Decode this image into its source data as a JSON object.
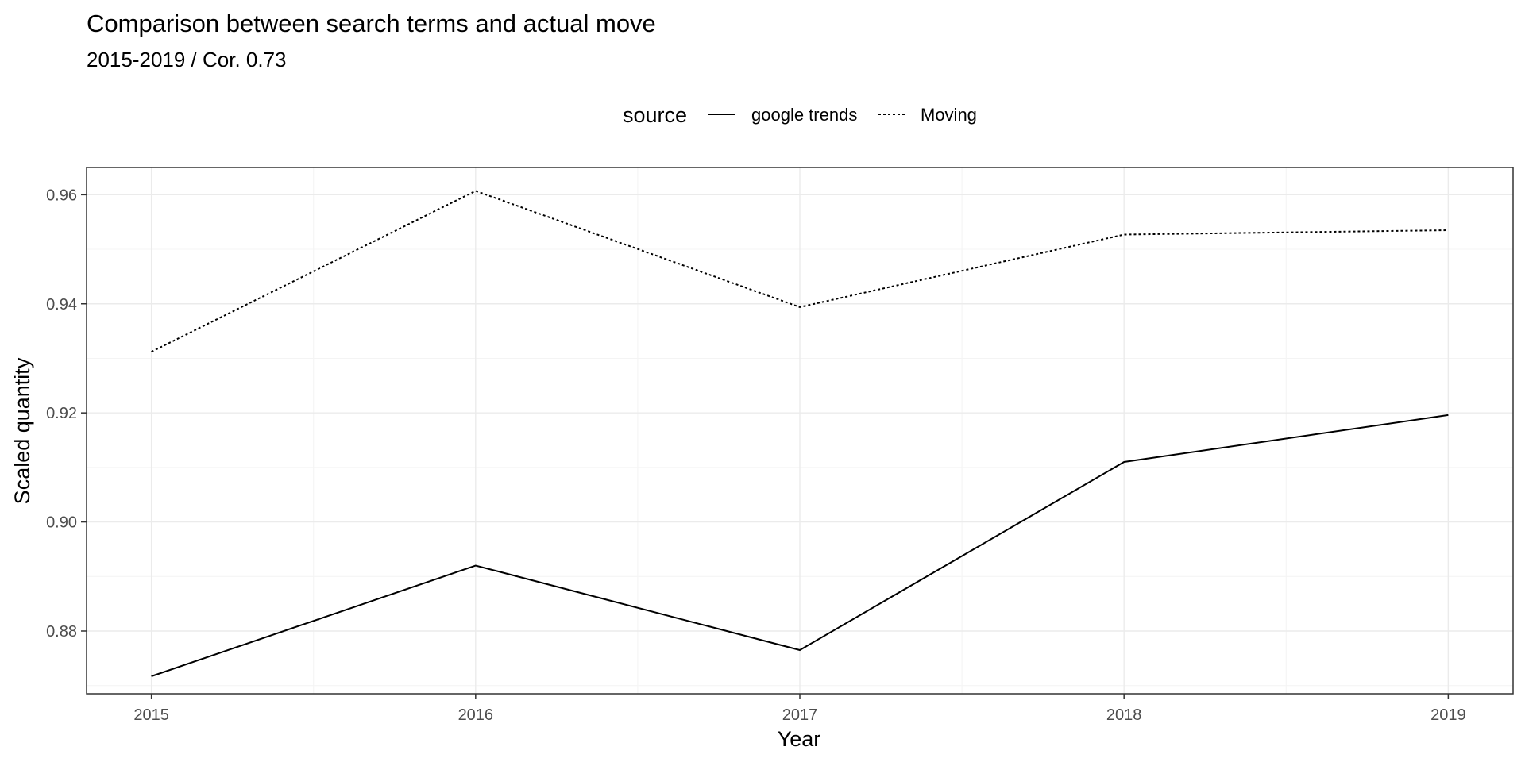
{
  "chart_data": {
    "type": "line",
    "title": "Comparison between search terms and actual move",
    "subtitle": "2015-2019 / Cor. 0.73",
    "xlabel": "Year",
    "ylabel": "Scaled quantity",
    "x": [
      2015,
      2016,
      2017,
      2018,
      2019
    ],
    "x_tick_labels": [
      "2015",
      "2016",
      "2017",
      "2018",
      "2019"
    ],
    "xlim": [
      2014.8,
      2019.2
    ],
    "y_ticks": [
      0.88,
      0.9,
      0.92,
      0.94,
      0.96
    ],
    "y_tick_labels": [
      "0.88",
      "0.90",
      "0.92",
      "0.94",
      "0.96"
    ],
    "ylim": [
      0.8685,
      0.965
    ],
    "grid": true,
    "legend": {
      "title": "source",
      "position": "top"
    },
    "series": [
      {
        "name": "google trends",
        "linetype": "solid",
        "values": [
          0.8717,
          0.892,
          0.8765,
          0.911,
          0.9196
        ]
      },
      {
        "name": "Moving",
        "linetype": "dotted",
        "values": [
          0.9312,
          0.9607,
          0.9394,
          0.9527,
          0.9535
        ]
      }
    ]
  }
}
